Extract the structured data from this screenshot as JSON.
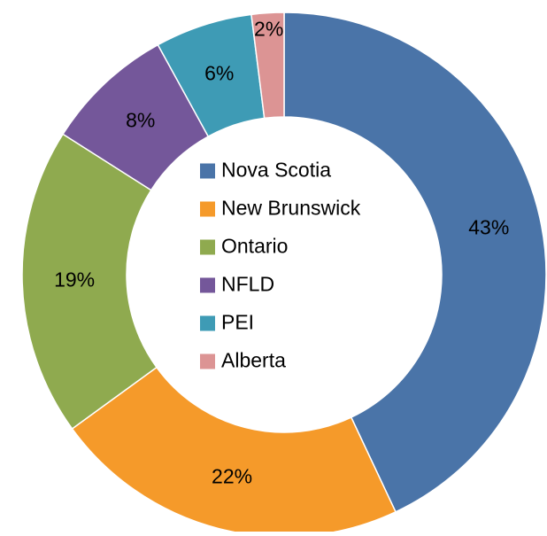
{
  "chart_data": {
    "type": "donut",
    "categories": [
      "Nova Scotia",
      "New Brunswick",
      "Ontario",
      "NFLD",
      "PEI",
      "Alberta"
    ],
    "values": [
      43,
      22,
      19,
      8,
      6,
      2
    ],
    "value_labels": [
      "43%",
      "22%",
      "19%",
      "8%",
      "6%",
      "2%"
    ],
    "colors": [
      "#4a74a8",
      "#f59a2a",
      "#8faa4f",
      "#74579a",
      "#3e9bb5",
      "#dc9494"
    ],
    "legend": "center"
  }
}
